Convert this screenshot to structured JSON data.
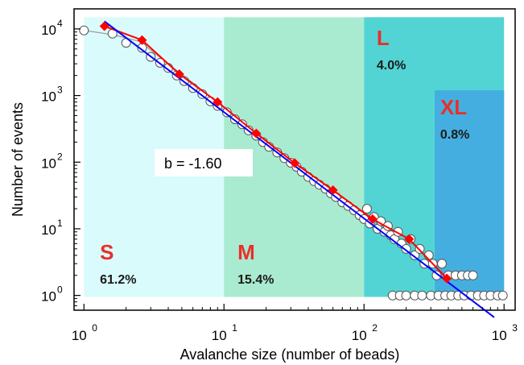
{
  "chart_data": {
    "type": "scatter",
    "title": "",
    "xlabel": "Avalanche size (number of beads)",
    "ylabel": "Number of events",
    "x_scale": "log",
    "y_scale": "log",
    "xlim": [
      0.85,
      1200
    ],
    "ylim": [
      0.6,
      20000
    ],
    "x_ticks": [
      {
        "base": "10",
        "exp": "0",
        "value": 1
      },
      {
        "base": "10",
        "exp": "1",
        "value": 10
      },
      {
        "base": "10",
        "exp": "2",
        "value": 100
      },
      {
        "base": "10",
        "exp": "3",
        "value": 1000
      }
    ],
    "y_ticks": [
      {
        "base": "10",
        "exp": "0",
        "value": 1
      },
      {
        "base": "10",
        "exp": "1",
        "value": 10
      },
      {
        "base": "10",
        "exp": "2",
        "value": 100
      },
      {
        "base": "10",
        "exp": "3",
        "value": 1000
      },
      {
        "base": "10",
        "exp": "4",
        "value": 10000
      }
    ],
    "regions": [
      {
        "label": "S",
        "percent": "61.2%",
        "x_range": [
          1,
          10
        ],
        "y_top": 15000,
        "color": "#d9fbfb"
      },
      {
        "label": "M",
        "percent": "15.4%",
        "x_range": [
          10,
          100
        ],
        "y_top": 15000,
        "color": "#a9ebd1"
      },
      {
        "label": "L",
        "percent": "4.0%",
        "x_range": [
          100,
          1000
        ],
        "y_top": 15000,
        "color": "#52d4d4"
      },
      {
        "label": "XL",
        "percent": "0.8%",
        "x_range": [
          320,
          1000
        ],
        "y_top": 1200,
        "color": "#45aee0"
      }
    ],
    "fit_annotation": "b = -1.60",
    "series": [
      {
        "type": "scatter",
        "marker": "open-circle",
        "points": [
          [
            1.0,
            9500
          ],
          [
            1.6,
            8500
          ],
          [
            2.0,
            6200
          ],
          [
            2.6,
            5200
          ],
          [
            3.0,
            3800
          ],
          [
            3.5,
            3100
          ],
          [
            4.0,
            2600
          ],
          [
            4.6,
            2000
          ],
          [
            5.2,
            1650
          ],
          [
            6.0,
            1300
          ],
          [
            7.0,
            1050
          ],
          [
            8.0,
            820
          ],
          [
            9.0,
            700
          ],
          [
            10.5,
            560
          ],
          [
            12,
            440
          ],
          [
            13.5,
            370
          ],
          [
            15,
            300
          ],
          [
            17,
            250
          ],
          [
            19,
            200
          ],
          [
            21,
            170
          ],
          [
            24,
            140
          ],
          [
            27,
            115
          ],
          [
            30,
            98
          ],
          [
            33,
            85
          ],
          [
            36,
            72
          ],
          [
            40,
            60
          ],
          [
            44,
            52
          ],
          [
            48,
            46
          ],
          [
            53,
            40
          ],
          [
            58,
            34
          ],
          [
            63,
            30
          ],
          [
            70,
            25
          ],
          [
            77,
            22
          ],
          [
            85,
            19
          ],
          [
            93,
            16
          ],
          [
            100,
            14
          ],
          [
            105,
            20
          ],
          [
            110,
            12
          ],
          [
            118,
            15
          ],
          [
            125,
            10
          ],
          [
            132,
            13
          ],
          [
            140,
            9
          ],
          [
            148,
            11
          ],
          [
            155,
            8
          ],
          [
            165,
            7
          ],
          [
            175,
            9
          ],
          [
            185,
            6
          ],
          [
            200,
            5
          ],
          [
            215,
            7
          ],
          [
            230,
            4
          ],
          [
            250,
            5
          ],
          [
            270,
            3
          ],
          [
            290,
            4
          ],
          [
            310,
            3
          ],
          [
            330,
            2
          ],
          [
            360,
            3
          ],
          [
            400,
            2
          ],
          [
            450,
            2
          ],
          [
            500,
            2
          ],
          [
            550,
            2
          ],
          [
            600,
            2
          ],
          [
            160,
            1
          ],
          [
            180,
            1
          ],
          [
            200,
            1
          ],
          [
            230,
            1
          ],
          [
            260,
            1
          ],
          [
            300,
            1
          ],
          [
            340,
            1
          ],
          [
            380,
            1
          ],
          [
            420,
            1
          ],
          [
            470,
            1
          ],
          [
            520,
            1
          ],
          [
            580,
            1
          ],
          [
            650,
            1
          ],
          [
            720,
            1
          ],
          [
            800,
            1
          ],
          [
            900,
            1
          ],
          [
            980,
            1
          ]
        ]
      },
      {
        "type": "line-markers",
        "marker": "diamond",
        "color": "#ff0000",
        "points": [
          [
            1.4,
            11000
          ],
          [
            2.6,
            6800
          ],
          [
            4.8,
            2100
          ],
          [
            9.0,
            800
          ],
          [
            17,
            270
          ],
          [
            32,
            97
          ],
          [
            60,
            38
          ],
          [
            115,
            14
          ],
          [
            210,
            7
          ],
          [
            390,
            1.8
          ]
        ]
      },
      {
        "type": "fit-line",
        "color": "#0000ff",
        "points": [
          [
            1.4,
            13000
          ],
          [
            850,
            0.47
          ]
        ]
      },
      {
        "type": "smooth-line",
        "color": "#999999",
        "points": [
          [
            1.0,
            9500
          ],
          [
            1.6,
            8200
          ],
          [
            2.5,
            6500
          ],
          [
            4.0,
            3000
          ],
          [
            7.0,
            1200
          ],
          [
            12,
            430
          ]
        ]
      }
    ]
  }
}
